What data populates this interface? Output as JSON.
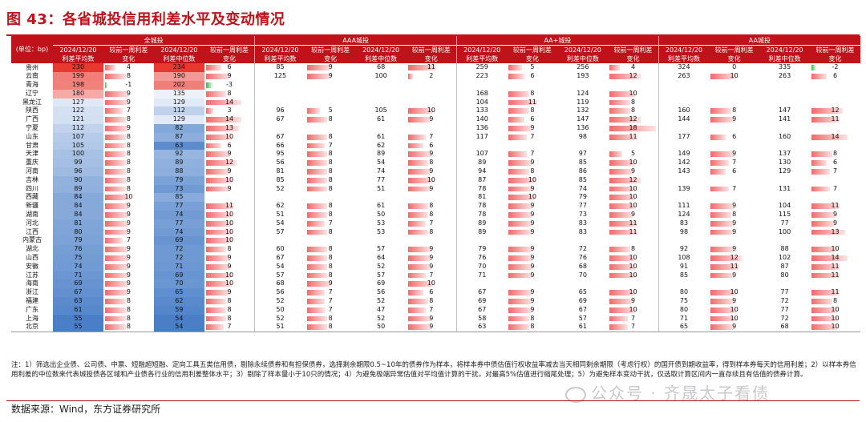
{
  "title": "图 43：各省城投信用利差水平及变动情况",
  "header": {
    "unit_label": "(单位：bp)",
    "groups": [
      "全城投",
      "AAA城投",
      "AA+城投",
      "AA城投"
    ],
    "sub": [
      "2024/12/20",
      "利差平均数",
      "较前一周利差",
      "变化",
      "2024/12/20",
      "利差中位数",
      "较前一周利差",
      "变化"
    ]
  },
  "rows": [
    {
      "p": "贵州",
      "v": [
        "230",
        "4",
        "234",
        "6",
        "85",
        "9",
        "68",
        "11",
        "259",
        "5",
        "256",
        "4",
        "324",
        "0",
        "335",
        "-2"
      ]
    },
    {
      "p": "云南",
      "v": [
        "199",
        "8",
        "190",
        "9",
        "125",
        "9",
        "100",
        "2",
        "223",
        "6",
        "193",
        "12",
        "263",
        "10",
        "263",
        "6"
      ]
    },
    {
      "p": "青海",
      "v": [
        "198",
        "-1",
        "202",
        "-3",
        "",
        "",
        "",
        "",
        "",
        "",
        "",
        "",
        "",
        "",
        "",
        ""
      ]
    },
    {
      "p": "辽宁",
      "v": [
        "180",
        "9",
        "135",
        "8",
        "",
        "",
        "",
        "",
        "168",
        "8",
        "124",
        "10",
        "",
        "",
        "",
        ""
      ]
    },
    {
      "p": "黑龙江",
      "v": [
        "127",
        "9",
        "129",
        "14",
        "",
        "",
        "",
        "",
        "104",
        "11",
        "119",
        "8",
        "",
        "",
        "",
        ""
      ]
    },
    {
      "p": "陕西",
      "v": [
        "122",
        "7",
        "112",
        "3",
        "96",
        "5",
        "105",
        "10",
        "133",
        "8",
        "132",
        "8",
        "160",
        "8",
        "147",
        "12"
      ]
    },
    {
      "p": "广西",
      "v": [
        "121",
        "8",
        "129",
        "14",
        "67",
        "8",
        "61",
        "9",
        "140",
        "6",
        "147",
        "12",
        "144",
        "9",
        "141",
        "11"
      ]
    },
    {
      "p": "宁夏",
      "v": [
        "112",
        "9",
        "82",
        "13",
        "",
        "",
        "",
        "",
        "136",
        "9",
        "136",
        "18",
        "",
        "",
        "",
        ""
      ]
    },
    {
      "p": "山东",
      "v": [
        "107",
        "8",
        "87",
        "10",
        "67",
        "8",
        "61",
        "7",
        "117",
        "7",
        "98",
        "11",
        "177",
        "6",
        "160",
        "14"
      ]
    },
    {
      "p": "甘肃",
      "v": [
        "105",
        "8",
        "63",
        "6",
        "66",
        "7",
        "62",
        "6",
        "",
        "",
        "",
        "",
        "",
        "",
        "",
        ""
      ]
    },
    {
      "p": "天津",
      "v": [
        "100",
        "8",
        "92",
        "9",
        "95",
        "8",
        "89",
        "9",
        "107",
        "7",
        "97",
        "5",
        "149",
        "9",
        "137",
        "8"
      ]
    },
    {
      "p": "重庆",
      "v": [
        "99",
        "8",
        "89",
        "12",
        "56",
        "8",
        "54",
        "8",
        "89",
        "9",
        "85",
        "10",
        "142",
        "7",
        "130",
        "6"
      ]
    },
    {
      "p": "河南",
      "v": [
        "96",
        "8",
        "88",
        "9",
        "81",
        "8",
        "74",
        "9",
        "94",
        "8",
        "86",
        "9",
        "143",
        "6",
        "129",
        "7"
      ]
    },
    {
      "p": "吉林",
      "v": [
        "90",
        "8",
        "79",
        "10",
        "85",
        "8",
        "77",
        "10",
        "87",
        "10",
        "85",
        "12",
        "",
        "",
        "",
        ""
      ]
    },
    {
      "p": "四川",
      "v": [
        "89",
        "8",
        "73",
        "9",
        "52",
        "8",
        "51",
        "9",
        "78",
        "9",
        "74",
        "10",
        "139",
        "7",
        "131",
        "7"
      ]
    },
    {
      "p": "西藏",
      "v": [
        "84",
        "10",
        "85",
        "",
        "",
        "",
        "",
        "",
        "81",
        "10",
        "79",
        "10",
        "",
        "",
        "",
        ""
      ]
    },
    {
      "p": "新疆",
      "v": [
        "84",
        "9",
        "77",
        "11",
        "62",
        "8",
        "61",
        "8",
        "78",
        "9",
        "77",
        "10",
        "111",
        "9",
        "104",
        "11"
      ]
    },
    {
      "p": "湖南",
      "v": [
        "84",
        "9",
        "74",
        "10",
        "51",
        "8",
        "50",
        "8",
        "78",
        "9",
        "73",
        "9",
        "124",
        "8",
        "115",
        "9"
      ]
    },
    {
      "p": "河北",
      "v": [
        "81",
        "9",
        "77",
        "10",
        "54",
        "7",
        "53",
        "7",
        "89",
        "9",
        "83",
        "11",
        "83",
        "9",
        "77",
        "9"
      ]
    },
    {
      "p": "江西",
      "v": [
        "80",
        "9",
        "74",
        "10",
        "57",
        "8",
        "53",
        "8",
        "89",
        "9",
        "83",
        "11",
        "98",
        "9",
        "100",
        "13"
      ]
    },
    {
      "p": "内蒙古",
      "v": [
        "79",
        "7",
        "69",
        "10",
        "",
        "",
        "",
        "",
        "",
        "",
        "",
        "",
        "",
        "",
        "",
        ""
      ]
    },
    {
      "p": "湖北",
      "v": [
        "76",
        "9",
        "72",
        "8",
        "60",
        "8",
        "57",
        "9",
        "79",
        "9",
        "72",
        "8",
        "92",
        "9",
        "88",
        "10"
      ]
    },
    {
      "p": "山西",
      "v": [
        "75",
        "9",
        "72",
        "9",
        "67",
        "8",
        "64",
        "9",
        "76",
        "9",
        "76",
        "10",
        "108",
        "12",
        "102",
        "14"
      ]
    },
    {
      "p": "安徽",
      "v": [
        "74",
        "9",
        "71",
        "9",
        "54",
        "8",
        "52",
        "9",
        "70",
        "9",
        "68",
        "10",
        "91",
        "11",
        "87",
        "11"
      ]
    },
    {
      "p": "江苏",
      "v": [
        "71",
        "9",
        "69",
        "10",
        "57",
        "8",
        "57",
        "7",
        "71",
        "9",
        "70",
        "10",
        "85",
        "9",
        "80",
        "11"
      ]
    },
    {
      "p": "海南",
      "v": [
        "69",
        "9",
        "70",
        "10",
        "68",
        "9",
        "69",
        "10",
        "",
        "",
        "",
        "",
        "",
        "",
        "",
        ""
      ]
    },
    {
      "p": "浙江",
      "v": [
        "67",
        "9",
        "65",
        "9",
        "56",
        "7",
        "56",
        "6",
        "67",
        "9",
        "65",
        "10",
        "80",
        "10",
        "77",
        "11"
      ]
    },
    {
      "p": "福建",
      "v": [
        "63",
        "8",
        "62",
        "8",
        "52",
        "7",
        "52",
        "8",
        "69",
        "9",
        "69",
        "9",
        "75",
        "9",
        "72",
        "8"
      ]
    },
    {
      "p": "广东",
      "v": [
        "61",
        "8",
        "59",
        "8",
        "50",
        "7",
        "47",
        "7",
        "67",
        "9",
        "67",
        "10",
        "80",
        "10",
        "77",
        "10"
      ]
    },
    {
      "p": "上海",
      "v": [
        "55",
        "8",
        "54",
        "8",
        "52",
        "8",
        "52",
        "9",
        "58",
        "8",
        "57",
        "7",
        "71",
        "10",
        "72",
        "10"
      ]
    },
    {
      "p": "北京",
      "v": [
        "55",
        "8",
        "54",
        "7",
        "51",
        "8",
        "50",
        "9",
        "63",
        "8",
        "61",
        "7",
        "65",
        "9",
        "68",
        "10"
      ]
    }
  ],
  "notes": "注：1）筛选出企业债、公司债、中票、短融超短融、定向工具五类信用债，剔除永续债券和有担保债券，选择剩余期限0.5~10年的债券作为样本，将样本券中债估值行权收益率减去当天相同剩余期限（考虑行权）的国开债到期收益率，得到样本券每天的信用利差；2）以样本券信用利差的中位数来代表城投债各区域和产业债各行业的信用利差整体水平；3）剔除了样本量小于10只的情况；4）为避免极端异常估值对平均值计算的干扰，对最高5%估值进行缩尾处理；5）为避免样本变动干扰，仅选取计算区间内一直存续且有估值的债券计算。",
  "source": "数据来源：Wind，东方证券研究所",
  "watermark": "公众号 · 齐晟太子看债",
  "colors": {
    "red": "#c0121b",
    "heat_high": "#e8382f",
    "heat_low": "#4a7fc8",
    "bar": "#f06a6a",
    "bar_neg": "#3cb44b"
  }
}
